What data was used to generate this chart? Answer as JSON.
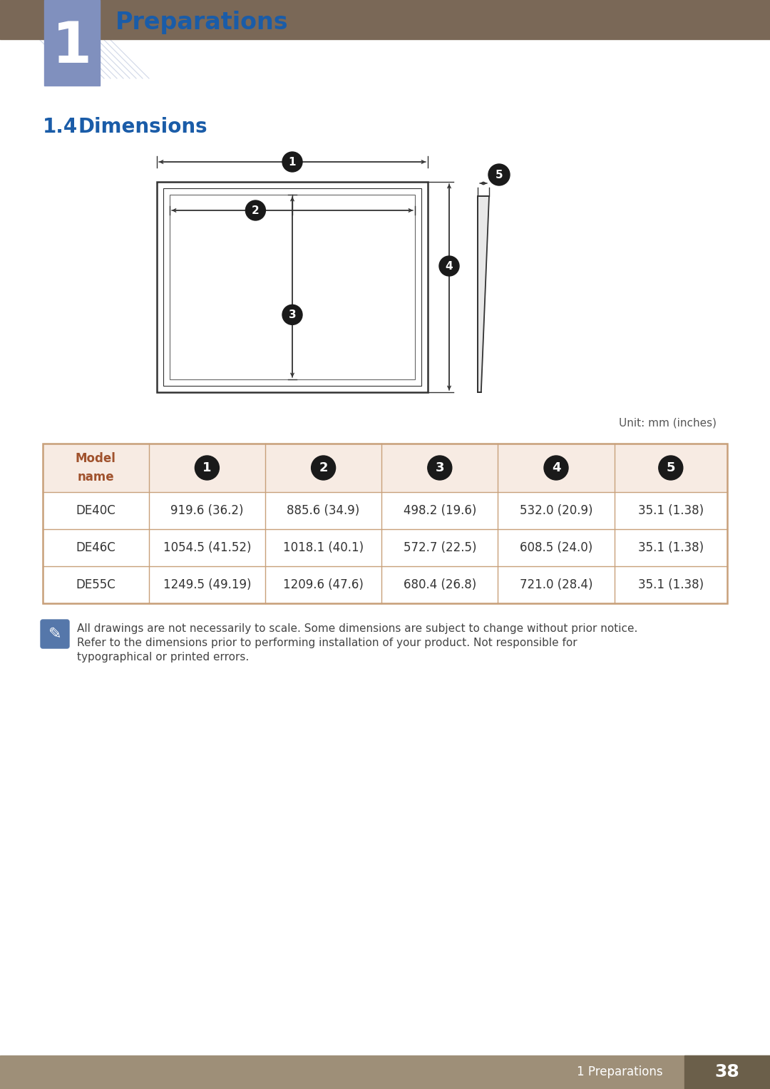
{
  "page_bg": "#ffffff",
  "header_bg": "#7a6857",
  "chapter_box_color": "#8090be",
  "chapter_number": "1",
  "chapter_title": "Preparations",
  "chapter_title_color": "#1a5ca8",
  "section_title": "1.4",
  "section_subtitle": "Dimensions",
  "section_title_color": "#1a5ca8",
  "unit_text": "Unit: mm (inches)",
  "table_header_bg": "#f7ebe3",
  "table_border_color": "#c8a07a",
  "table_header_text_color": "#a0522d",
  "table_data_text_color": "#333333",
  "table_rows": [
    [
      "DE40C",
      "919.6 (36.2)",
      "885.6 (34.9)",
      "498.2 (19.6)",
      "532.0 (20.9)",
      "35.1 (1.38)"
    ],
    [
      "DE46C",
      "1054.5 (41.52)",
      "1018.1 (40.1)",
      "572.7 (22.5)",
      "608.5 (24.0)",
      "35.1 (1.38)"
    ],
    [
      "DE55C",
      "1249.5 (49.19)",
      "1209.6 (47.6)",
      "680.4 (26.8)",
      "721.0 (28.4)",
      "35.1 (1.38)"
    ]
  ],
  "note_text_line1": "All drawings are not necessarily to scale. Some dimensions are subject to change without prior notice.",
  "note_text_line2": "Refer to the dimensions prior to performing installation of your product. Not responsible for",
  "note_text_line3": "typographical or printed errors.",
  "footer_bg": "#9e8f78",
  "footer_text": "1 Preparations",
  "footer_page": "38",
  "diagram_circle_bg": "#1a1a1a",
  "diagram_circle_fg": "#ffffff",
  "diagram_line_color": "#333333"
}
